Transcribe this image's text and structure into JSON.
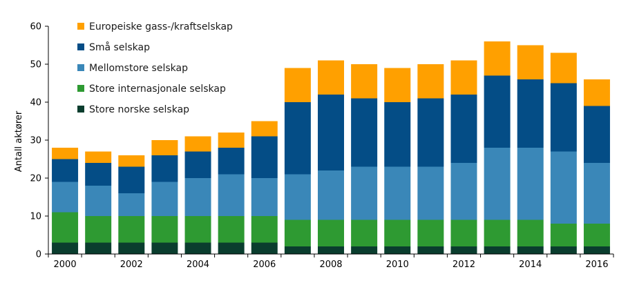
{
  "chart_data": {
    "type": "bar",
    "stacked": true,
    "ylabel": "Antall aktører",
    "ylim": [
      0,
      60
    ],
    "yticks": [
      0,
      10,
      20,
      30,
      40,
      50,
      60
    ],
    "grid": false,
    "legend_position": "top-left",
    "categories": [
      "2000",
      "2001",
      "2002",
      "2003",
      "2004",
      "2005",
      "2006",
      "2007",
      "2008",
      "2009",
      "2010",
      "2011",
      "2012",
      "2013",
      "2014",
      "2015",
      "2016"
    ],
    "xtick_labels": [
      "2000",
      "2002",
      "2004",
      "2006",
      "2008",
      "2010",
      "2012",
      "2014",
      "2016"
    ],
    "series": [
      {
        "name": "Store norske selskap",
        "color": "#0a3d2e",
        "values": [
          3,
          3,
          3,
          3,
          3,
          3,
          3,
          2,
          2,
          2,
          2,
          2,
          2,
          2,
          2,
          2,
          2
        ]
      },
      {
        "name": "Store internasjonale selskap",
        "color": "#2e9a32",
        "values": [
          8,
          7,
          7,
          7,
          7,
          7,
          7,
          7,
          7,
          7,
          7,
          7,
          7,
          7,
          7,
          6,
          6
        ]
      },
      {
        "name": "Mellomstore selskap",
        "color": "#3a87b8",
        "values": [
          8,
          8,
          6,
          9,
          10,
          11,
          10,
          12,
          13,
          14,
          14,
          14,
          15,
          19,
          19,
          19,
          16
        ]
      },
      {
        "name": "Små selskap",
        "color": "#044d86",
        "values": [
          6,
          6,
          7,
          7,
          7,
          7,
          11,
          19,
          20,
          18,
          17,
          18,
          18,
          19,
          18,
          18,
          15
        ]
      },
      {
        "name": "Europeiske gass-/kraftselskap",
        "color": "#ffa000",
        "values": [
          3,
          3,
          3,
          4,
          4,
          4,
          4,
          9,
          9,
          9,
          9,
          9,
          9,
          9,
          9,
          8,
          7
        ]
      }
    ]
  }
}
